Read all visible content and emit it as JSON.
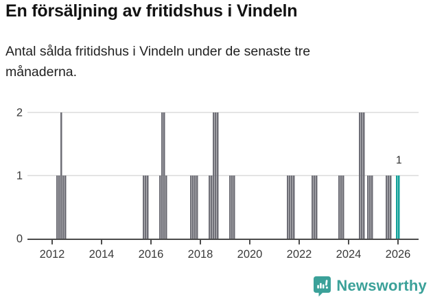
{
  "header": {
    "title": "En försäljning av fritidshus i Vindeln",
    "subtitle": "Antal sålda fritidshus i Vindeln under de senaste tre månaderna."
  },
  "footer": {
    "brand": "Newsworthy",
    "logo_icon": "newsworthy-speech-bubble-bar-chart-icon"
  },
  "colors": {
    "bar": "#6e6e76",
    "highlight": "#12a19a",
    "grid": "#e4e4e4",
    "axis": "#4a4a4a",
    "tick_label": "#3a3a3a",
    "annotation_text": "#2b2b2b",
    "title_text": "#121212",
    "body_text": "#1f1f1f",
    "brand": "#3ba199",
    "background": "#ffffff"
  },
  "chart_data": {
    "type": "bar",
    "title": "En försäljning av fritidshus i Vindeln",
    "subtitle": "Antal sålda fritidshus i Vindeln under de senaste tre månaderna.",
    "xlabel": "",
    "ylabel": "",
    "x_unit": "month",
    "x_tick_labels": [
      "2012",
      "2014",
      "2016",
      "2018",
      "2020",
      "2022",
      "2024",
      "2026"
    ],
    "y_tick_labels": [
      "0",
      "1",
      "2"
    ],
    "ylim": [
      0,
      2
    ],
    "xlim_years": [
      2011,
      2027
    ],
    "grid": "horizontal-only",
    "legend": "none",
    "highlight_note": "latest months drawn in teal",
    "annotation": {
      "text": "1",
      "month": "2026-01"
    },
    "points": [
      {
        "month": "2012-03",
        "value": 1
      },
      {
        "month": "2012-04",
        "value": 1
      },
      {
        "month": "2012-05",
        "value": 2
      },
      {
        "month": "2012-06",
        "value": 1
      },
      {
        "month": "2012-07",
        "value": 1
      },
      {
        "month": "2015-09",
        "value": 1
      },
      {
        "month": "2015-10",
        "value": 1
      },
      {
        "month": "2015-11",
        "value": 1
      },
      {
        "month": "2016-05",
        "value": 1
      },
      {
        "month": "2016-06",
        "value": 2
      },
      {
        "month": "2016-07",
        "value": 2
      },
      {
        "month": "2016-08",
        "value": 1
      },
      {
        "month": "2017-08",
        "value": 1
      },
      {
        "month": "2017-09",
        "value": 1
      },
      {
        "month": "2017-10",
        "value": 1
      },
      {
        "month": "2017-11",
        "value": 1
      },
      {
        "month": "2018-05",
        "value": 1
      },
      {
        "month": "2018-06",
        "value": 1
      },
      {
        "month": "2018-07",
        "value": 2
      },
      {
        "month": "2018-08",
        "value": 2
      },
      {
        "month": "2018-09",
        "value": 2
      },
      {
        "month": "2019-03",
        "value": 1
      },
      {
        "month": "2019-04",
        "value": 1
      },
      {
        "month": "2019-05",
        "value": 1
      },
      {
        "month": "2021-07",
        "value": 1
      },
      {
        "month": "2021-08",
        "value": 1
      },
      {
        "month": "2021-09",
        "value": 1
      },
      {
        "month": "2021-10",
        "value": 1
      },
      {
        "month": "2022-07",
        "value": 1
      },
      {
        "month": "2022-08",
        "value": 1
      },
      {
        "month": "2022-09",
        "value": 1
      },
      {
        "month": "2023-08",
        "value": 1
      },
      {
        "month": "2023-09",
        "value": 1
      },
      {
        "month": "2023-10",
        "value": 1
      },
      {
        "month": "2024-06",
        "value": 2
      },
      {
        "month": "2024-07",
        "value": 2
      },
      {
        "month": "2024-08",
        "value": 2
      },
      {
        "month": "2024-10",
        "value": 1
      },
      {
        "month": "2024-11",
        "value": 1
      },
      {
        "month": "2024-12",
        "value": 1
      },
      {
        "month": "2025-07",
        "value": 1
      },
      {
        "month": "2025-08",
        "value": 1
      },
      {
        "month": "2025-09",
        "value": 1
      },
      {
        "month": "2025-12",
        "value": 1,
        "highlight": true
      },
      {
        "month": "2026-01",
        "value": 1,
        "highlight": true
      }
    ]
  }
}
